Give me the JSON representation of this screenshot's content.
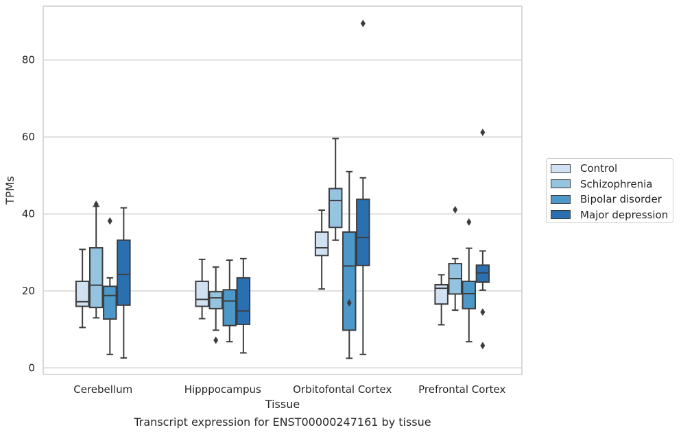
{
  "chart_data": {
    "type": "box",
    "caption": "Transcript expression for ENST00000247161 by tissue",
    "xlabel": "Tissue",
    "ylabel": "TPMs",
    "ylim": [
      -1.7,
      94
    ],
    "yticks": [
      0,
      20,
      40,
      60,
      80
    ],
    "grid": "horizontal",
    "legend_position": "right",
    "categories": [
      "Cerebellum",
      "Hipppocampus",
      "Orbitofontal Cortex",
      "Prefrontal Cortex"
    ],
    "series": [
      {
        "name": "Control",
        "color": "#d0e1f2",
        "boxes": [
          {
            "whisker_low": 10.5,
            "q1": 16.0,
            "median": 17.2,
            "q3": 22.5,
            "whisker_high": 30.8,
            "outliers": []
          },
          {
            "whisker_low": 12.8,
            "q1": 16.0,
            "median": 17.8,
            "q3": 22.5,
            "whisker_high": 28.2,
            "outliers": []
          },
          {
            "whisker_low": 20.5,
            "q1": 29.2,
            "median": 31.2,
            "q3": 35.3,
            "whisker_high": 41.0,
            "outliers": []
          },
          {
            "whisker_low": 11.2,
            "q1": 16.6,
            "median": 20.7,
            "q3": 21.6,
            "whisker_high": 24.2,
            "outliers": []
          }
        ]
      },
      {
        "name": "Schizophrenia",
        "color": "#94c4df",
        "boxes": [
          {
            "whisker_low": 13.0,
            "q1": 15.7,
            "median": 21.5,
            "q3": 31.2,
            "whisker_high": 42.0,
            "outliers": [
              42.5
            ]
          },
          {
            "whisker_low": 9.8,
            "q1": 15.4,
            "median": 18.2,
            "q3": 19.8,
            "whisker_high": 26.2,
            "outliers": [
              7.2
            ]
          },
          {
            "whisker_low": 33.2,
            "q1": 36.5,
            "median": 43.5,
            "q3": 46.6,
            "whisker_high": 59.6,
            "outliers": []
          },
          {
            "whisker_low": 15.0,
            "q1": 19.2,
            "median": 23.2,
            "q3": 27.1,
            "whisker_high": 28.4,
            "outliers": [
              41.1
            ]
          }
        ]
      },
      {
        "name": "Bipolar disorder",
        "color": "#4b98c9",
        "boxes": [
          {
            "whisker_low": 3.5,
            "q1": 12.7,
            "median": 18.8,
            "q3": 21.2,
            "whisker_high": 23.4,
            "outliers": [
              38.2
            ]
          },
          {
            "whisker_low": 6.8,
            "q1": 11.0,
            "median": 17.4,
            "q3": 20.3,
            "whisker_high": 28.0,
            "outliers": []
          },
          {
            "whisker_low": 2.5,
            "q1": 9.8,
            "median": 26.5,
            "q3": 35.3,
            "whisker_high": 51.0,
            "outliers": [
              16.9
            ]
          },
          {
            "whisker_low": 6.8,
            "q1": 15.4,
            "median": 19.3,
            "q3": 22.5,
            "whisker_high": 31.1,
            "outliers": [
              37.9
            ]
          }
        ]
      },
      {
        "name": "Major depression",
        "color": "#2a70b1",
        "boxes": [
          {
            "whisker_low": 2.6,
            "q1": 16.3,
            "median": 24.3,
            "q3": 33.2,
            "whisker_high": 41.6,
            "outliers": []
          },
          {
            "whisker_low": 3.9,
            "q1": 11.3,
            "median": 14.8,
            "q3": 23.4,
            "whisker_high": 28.4,
            "outliers": []
          },
          {
            "whisker_low": 3.5,
            "q1": 26.6,
            "median": 33.9,
            "q3": 43.8,
            "whisker_high": 49.4,
            "outliers": [
              89.5
            ]
          },
          {
            "whisker_low": 20.2,
            "q1": 22.3,
            "median": 24.7,
            "q3": 26.7,
            "whisker_high": 30.4,
            "outliers": [
              61.2,
              14.5,
              5.8
            ]
          }
        ]
      }
    ]
  }
}
